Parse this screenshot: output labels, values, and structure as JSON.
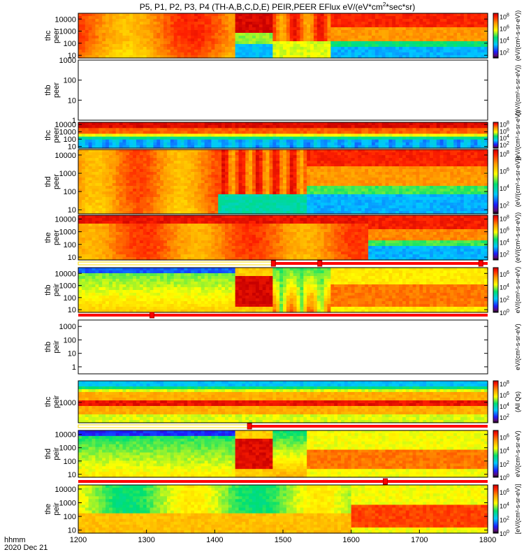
{
  "chart_data": {
    "type": "heatmap",
    "title": "P5, P1, P2, P3, P4 (TH-A,B,C,D,E) PEIR,PEER EFlux eV/(eV*cm^2*sec*sr)",
    "title_parts": {
      "prefix": "P5, P1, P2, P3, P4 (TH-A,B,C,D,E) PEIR,PEER EFlux eV/(eV*cm",
      "sup1": "2",
      "suffix": "*sec*sr)"
    },
    "x_axis": {
      "label": "hhmm",
      "date": "2020 Dec 21",
      "range": [
        1200,
        1800
      ],
      "ticks": [
        "1200",
        "1300",
        "1400",
        "1500",
        "1600",
        "1700",
        "1800"
      ]
    },
    "panels": [
      {
        "id": "tha_peer",
        "label1": "thc",
        "label2": "peer",
        "ylog": true,
        "yrange": [
          6,
          30000
        ],
        "yticks": [
          {
            "v": 10,
            "t": "10"
          },
          {
            "v": 100,
            "t": "100"
          },
          {
            "v": 1000,
            "t": "1000"
          },
          {
            "v": 10000,
            "t": "10000"
          }
        ],
        "has_data": true,
        "colorbar_label": "(eV/(cm²-s-sr-eV))",
        "cbar_ticks": [
          {
            "v": 2,
            "t": "10",
            "s": "2"
          },
          {
            "v": 4,
            "t": "10",
            "s": "4"
          },
          {
            "v": 6,
            "t": "10",
            "s": "6"
          },
          {
            "v": 8,
            "t": "10",
            "s": "8"
          }
        ],
        "cbar_range": [
          1,
          8.5
        ]
      },
      {
        "id": "thb_peer",
        "label1": "thb",
        "label2": "peer",
        "ylog": true,
        "yrange": [
          1,
          1000
        ],
        "yticks": [
          {
            "v": 1,
            "t": "1"
          },
          {
            "v": 10,
            "t": "10"
          },
          {
            "v": 100,
            "t": "100"
          },
          {
            "v": 1000,
            "t": "1000"
          }
        ],
        "has_data": false,
        "colorbar_label": "(eV/(cm²-s-sr-eV))"
      },
      {
        "id": "thc_peer",
        "label1": "thc",
        "label2": "peer",
        "ylog": true,
        "yrange": [
          6,
          20000
        ],
        "yticks": [
          {
            "v": 10,
            "t": "10"
          },
          {
            "v": 100,
            "t": "100"
          },
          {
            "v": 1000,
            "t": "1000"
          },
          {
            "v": 10000,
            "t": "10000"
          }
        ],
        "has_data": true,
        "colorbar_label": "(eV/(cm²-s-sr-eV))",
        "cbar_ticks": [
          {
            "v": 2,
            "t": "10",
            "s": "2"
          },
          {
            "v": 4,
            "t": "10",
            "s": "4"
          },
          {
            "v": 6,
            "t": "10",
            "s": "6"
          },
          {
            "v": 8,
            "t": "10",
            "s": "8"
          }
        ],
        "cbar_range": [
          1,
          8.5
        ]
      },
      {
        "id": "thd_peer",
        "label1": "thd",
        "label2": "peer",
        "ylog": true,
        "yrange": [
          6,
          20000
        ],
        "yticks": [
          {
            "v": 10,
            "t": "10"
          },
          {
            "v": 100,
            "t": "100"
          },
          {
            "v": 1000,
            "t": "1000"
          },
          {
            "v": 10000,
            "t": "10000"
          }
        ],
        "has_data": true,
        "colorbar_label": "(eV/(cm²-s-sr-eV))",
        "cbar_ticks": [
          {
            "v": 2,
            "t": "10",
            "s": "2"
          },
          {
            "v": 4,
            "t": "10",
            "s": "4"
          },
          {
            "v": 6,
            "t": "10",
            "s": "6"
          },
          {
            "v": 8,
            "t": "10",
            "s": "8"
          }
        ],
        "cbar_range": [
          1,
          8.5
        ]
      },
      {
        "id": "the_peer",
        "label1": "the",
        "label2": "peer",
        "ylog": true,
        "yrange": [
          6,
          20000
        ],
        "yticks": [
          {
            "v": 10,
            "t": "10"
          },
          {
            "v": 100,
            "t": "100"
          },
          {
            "v": 1000,
            "t": "1000"
          },
          {
            "v": 10000,
            "t": "10000"
          }
        ],
        "has_data": true,
        "colorbar_label": "(eV/(cm²-s-sr-eV))",
        "cbar_ticks": [
          {
            "v": 2,
            "t": "10",
            "s": "2"
          },
          {
            "v": 4,
            "t": "10",
            "s": "4"
          },
          {
            "v": 6,
            "t": "10",
            "s": "6"
          },
          {
            "v": 8,
            "t": "10",
            "s": "8"
          }
        ],
        "cbar_range": [
          1,
          8.5
        ]
      },
      {
        "id": "tha_peir",
        "label1": "thb",
        "label2": "peir",
        "ylog": true,
        "yrange": [
          6,
          30000
        ],
        "yticks": [
          {
            "v": 10,
            "t": "10"
          },
          {
            "v": 100,
            "t": "100"
          },
          {
            "v": 1000,
            "t": "1000"
          },
          {
            "v": 10000,
            "t": "10000"
          }
        ],
        "has_data": true,
        "colorbar_label": "eV/(cm²-s-sr-eV)",
        "cbar_ticks": [
          {
            "v": 0,
            "t": "10",
            "s": "0"
          },
          {
            "v": 2,
            "t": "10",
            "s": "2"
          },
          {
            "v": 4,
            "t": "10",
            "s": "4"
          },
          {
            "v": 6,
            "t": "10",
            "s": "6"
          }
        ],
        "cbar_range": [
          0,
          7
        ]
      },
      {
        "id": "thb_peir",
        "label1": "thb",
        "label2": "peir",
        "ylog": true,
        "yrange": [
          0.3,
          3000
        ],
        "yticks": [
          {
            "v": 1,
            "t": "1"
          },
          {
            "v": 10,
            "t": "10"
          },
          {
            "v": 100,
            "t": "100"
          },
          {
            "v": 1000,
            "t": "1000"
          }
        ],
        "has_data": false,
        "colorbar_label": "eV/(cm²-s-sr-eV)"
      },
      {
        "id": "thc_peir",
        "label1": "thc",
        "label2": "peir",
        "ylog": true,
        "yrange": [
          30,
          40000
        ],
        "yticks": [
          {
            "v": 1000,
            "t": "1000"
          }
        ],
        "has_data": true,
        "colorbar_label": "(All Qs)",
        "cbar_ticks": [
          {
            "v": 2,
            "t": "10",
            "s": "2"
          },
          {
            "v": 4,
            "t": "10",
            "s": "4"
          },
          {
            "v": 6,
            "t": "10",
            "s": "6"
          },
          {
            "v": 8,
            "t": "10",
            "s": "8"
          }
        ],
        "cbar_range": [
          1,
          8.5
        ]
      },
      {
        "id": "thd_peir",
        "label1": "thd",
        "label2": "peir",
        "ylog": true,
        "yrange": [
          6,
          20000
        ],
        "yticks": [
          {
            "v": 10,
            "t": "10"
          },
          {
            "v": 100,
            "t": "100"
          },
          {
            "v": 1000,
            "t": "1000"
          },
          {
            "v": 10000,
            "t": "10000"
          }
        ],
        "has_data": true,
        "colorbar_label": "eV/(cm²-s-sr-eV)",
        "cbar_ticks": [
          {
            "v": 0,
            "t": "10",
            "s": "0"
          },
          {
            "v": 2,
            "t": "10",
            "s": "2"
          },
          {
            "v": 4,
            "t": "10",
            "s": "4"
          },
          {
            "v": 6,
            "t": "10",
            "s": "6"
          }
        ],
        "cbar_range": [
          0,
          7
        ]
      },
      {
        "id": "the_peir",
        "label1": "the",
        "label2": "peir",
        "ylog": true,
        "yrange": [
          6,
          20000
        ],
        "yticks": [
          {
            "v": 10,
            "t": "10"
          },
          {
            "v": 100,
            "t": "100"
          },
          {
            "v": 1000,
            "t": "1000"
          },
          {
            "v": 10000,
            "t": "10000"
          }
        ],
        "has_data": true,
        "colorbar_label": "[eV/(cm²-s-sr-eV)]",
        "cbar_ticks": [
          {
            "v": 0,
            "t": "10",
            "s": "0"
          },
          {
            "v": 2,
            "t": "10",
            "s": "2"
          },
          {
            "v": 4,
            "t": "10",
            "s": "4"
          },
          {
            "v": 6,
            "t": "10",
            "s": "6"
          }
        ],
        "cbar_range": [
          0,
          7
        ]
      }
    ],
    "mode_bars": [
      {
        "after_panel": "the_peer",
        "white_until": 1486,
        "markers": [
          1486,
          1554,
          1790
        ]
      },
      {
        "after_panel": "thb_peir",
        "white_until": 1200,
        "markers": [
          1308
        ]
      },
      {
        "after_panel": "thc_peir",
        "white_until": 1451,
        "markers": [
          1451
        ]
      },
      {
        "after_panel": "thd_peir",
        "white_until": 1200,
        "markers": [
          1650
        ]
      }
    ],
    "colormap": "rainbow: black-magenta-blue-cyan-green-yellow-orange-red"
  }
}
